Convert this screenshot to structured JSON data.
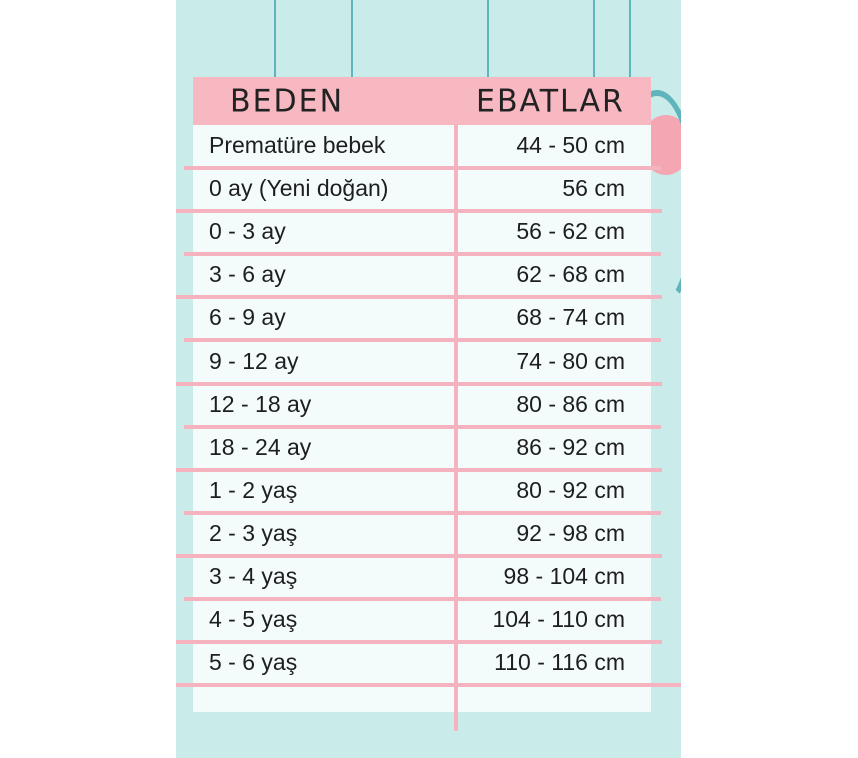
{
  "header": {
    "col_size": "BEDEN",
    "col_dims": "EBATLAR"
  },
  "colors": {
    "background": "#c9ecea",
    "header": "#f7b8c2",
    "lines": "#f4b3bf",
    "strings": "#5fb5bb"
  },
  "rows": [
    {
      "size": "Prematüre bebek",
      "dims": "44 - 50 cm"
    },
    {
      "size": "0 ay (Yeni doğan)",
      "dims": "56 cm"
    },
    {
      "size": "0 - 3 ay",
      "dims": "56 - 62 cm"
    },
    {
      "size": "3 - 6 ay",
      "dims": "62 - 68 cm"
    },
    {
      "size": "6 - 9 ay",
      "dims": "68 - 74 cm"
    },
    {
      "size": "9 - 12 ay",
      "dims": "74 - 80 cm"
    },
    {
      "size": "12 - 18 ay",
      "dims": "80 - 86 cm"
    },
    {
      "size": "18 - 24 ay",
      "dims": "86 - 92 cm"
    },
    {
      "size": "1 - 2 yaş",
      "dims": "80 - 92 cm"
    },
    {
      "size": "2 - 3 yaş",
      "dims": "92 - 98 cm"
    },
    {
      "size": "3 - 4 yaş",
      "dims": "98 - 104 cm"
    },
    {
      "size": "4 - 5 yaş",
      "dims": "104 - 110 cm"
    },
    {
      "size": "5 - 6 yaş",
      "dims": "110 - 116 cm"
    }
  ]
}
